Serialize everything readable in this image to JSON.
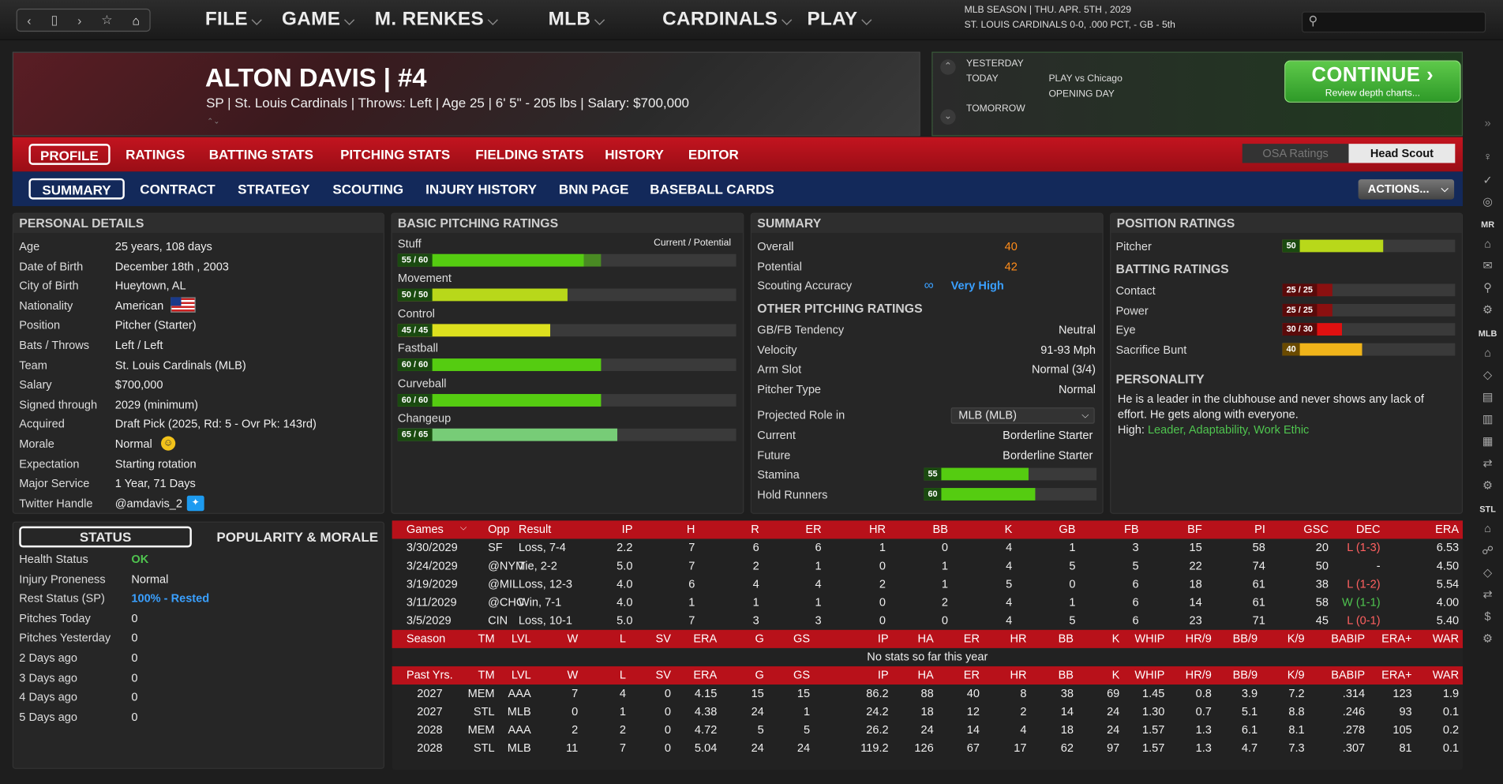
{
  "nav": {
    "back": "‹",
    "tablet": "▯",
    "forward": "›",
    "star": "☆",
    "home": "⌂"
  },
  "menus": [
    "FILE",
    "GAME",
    "M. RENKES",
    "MLB",
    "CARDINALS",
    "PLAY"
  ],
  "season": {
    "line1": "MLB SEASON  |  THU. APR. 5TH , 2029",
    "line2": "ST. LOUIS CARDINALS  0-0, .000 PCT, - GB - 5th"
  },
  "player": {
    "name": "ALTON DAVIS  |  #4",
    "info": "SP | St. Louis Cardinals  |  Throws: Left  |  Age 25  |  6' 5\" - 205 lbs  |  Salary: $700,000"
  },
  "schedule": {
    "yesterday": "YESTERDAY",
    "today": "TODAY",
    "tomorrow": "TOMORROW",
    "game": "PLAY vs Chicago",
    "note": "OPENING DAY"
  },
  "continue": {
    "title": "CONTINUE",
    "sub": "Review depth charts..."
  },
  "tabs1": [
    "PROFILE",
    "RATINGS",
    "BATTING STATS",
    "PITCHING STATS",
    "FIELDING STATS",
    "HISTORY",
    "EDITOR"
  ],
  "tabs2": [
    "SUMMARY",
    "CONTRACT",
    "STRATEGY",
    "SCOUTING",
    "INJURY HISTORY",
    "BNN PAGE",
    "BASEBALL CARDS"
  ],
  "osa": {
    "a": "OSA Ratings",
    "b": "Head Scout"
  },
  "actions": "ACTIONS...",
  "personal": {
    "title": "PERSONAL DETAILS",
    "rows": [
      [
        "Age",
        "25 years, 108 days"
      ],
      [
        "Date of Birth",
        "December 18th , 2003"
      ],
      [
        "City of Birth",
        "Hueytown, AL"
      ],
      [
        "Nationality",
        "American"
      ],
      [
        "Position",
        "Pitcher (Starter)"
      ],
      [
        "Bats / Throws",
        "Left / Left"
      ],
      [
        "Team",
        "St. Louis Cardinals (MLB)"
      ],
      [
        "Salary",
        "$700,000"
      ],
      [
        "Signed through",
        "2029 (minimum)"
      ],
      [
        "Acquired",
        "Draft Pick (2025, Rd: 5 - Ovr Pk: 143rd)"
      ],
      [
        "Morale",
        "Normal"
      ],
      [
        "Expectation",
        "Starting rotation"
      ],
      [
        "Major Service",
        "1 Year, 71 Days"
      ],
      [
        "Twitter Handle",
        "@amdavis_2"
      ]
    ]
  },
  "status": {
    "tab": "STATUS",
    "tab2": "POPULARITY & MORALE",
    "rows": [
      [
        "Health Status",
        "OK"
      ],
      [
        "Injury Proneness",
        "Normal"
      ],
      [
        "Rest Status (SP)",
        "100% - Rested"
      ],
      [
        "Pitches Today",
        "0"
      ],
      [
        "Pitches Yesterday",
        "0"
      ],
      [
        "2 Days ago",
        "0"
      ],
      [
        "3 Days ago",
        "0"
      ],
      [
        "4 Days ago",
        "0"
      ],
      [
        "5 Days ago",
        "0"
      ]
    ]
  },
  "basic": {
    "title": "BASIC PITCHING RATINGS",
    "cp": "Current / Potential",
    "ratings": [
      {
        "name": "Stuff",
        "label": "55 / 60",
        "cur": 55,
        "pot": 60,
        "color": "#55cc11"
      },
      {
        "name": "Movement",
        "label": "50 / 50",
        "cur": 50,
        "pot": 50,
        "color": "#b8d81a"
      },
      {
        "name": "Control",
        "label": "45 / 45",
        "cur": 45,
        "pot": 45,
        "color": "#dde01e"
      },
      {
        "name": "Fastball",
        "label": "60 / 60",
        "cur": 60,
        "pot": 60,
        "color": "#55cc11"
      },
      {
        "name": "Curveball",
        "label": "60 / 60",
        "cur": 60,
        "pot": 60,
        "color": "#55cc11"
      },
      {
        "name": "Changeup",
        "label": "65 / 65",
        "cur": 65,
        "pot": 65,
        "color": "#77cc77"
      }
    ]
  },
  "summary": {
    "title": "SUMMARY",
    "overall_l": "Overall",
    "overall": "40",
    "potential_l": "Potential",
    "potential": "42",
    "acc_l": "Scouting Accuracy",
    "acc": "Very High",
    "other_title": "OTHER PITCHING RATINGS",
    "other": [
      [
        "GB/FB Tendency",
        "Neutral"
      ],
      [
        "Velocity",
        "91-93 Mph"
      ],
      [
        "Arm Slot",
        "Normal (3/4)"
      ],
      [
        "Pitcher Type",
        "Normal"
      ]
    ],
    "role_l": "Projected Role in",
    "role_sel": "MLB (MLB)",
    "current_l": "Current",
    "current": "Borderline Starter",
    "future_l": "Future",
    "future": "Borderline Starter",
    "stamina_l": "Stamina",
    "stamina": "55",
    "stamina_v": 55,
    "hold_l": "Hold Runners",
    "hold": "60",
    "hold_v": 60
  },
  "position": {
    "title": "POSITION RATINGS",
    "pitcher_l": "Pitcher",
    "pitcher": "50",
    "pitcher_v": 50,
    "bat_title": "BATTING RATINGS",
    "bat": [
      {
        "name": "Contact",
        "label": "25 / 25",
        "v": 25
      },
      {
        "name": "Power",
        "label": "25 / 25",
        "v": 25
      },
      {
        "name": "Eye",
        "label": "30 / 30",
        "v": 30
      },
      {
        "name": "Sacrifice Bunt",
        "label": "40",
        "v": 40
      }
    ],
    "pers_title": "PERSONALITY",
    "pers": "He is a leader in the clubhouse and never shows any lack of effort. He gets along with everyone.",
    "high_l": "High:",
    "high": "Leader, Adaptability, Work Ethic"
  },
  "games": {
    "head": [
      "Games",
      "Opp",
      "Result",
      "IP",
      "H",
      "R",
      "ER",
      "HR",
      "BB",
      "K",
      "GB",
      "FB",
      "BF",
      "PI",
      "GSC",
      "DEC",
      "ERA"
    ],
    "rows": [
      [
        "3/30/2029",
        "SF",
        "Loss, 7-4",
        "2.2",
        "7",
        "6",
        "6",
        "1",
        "0",
        "4",
        "1",
        "3",
        "15",
        "58",
        "20",
        "L (1-3)",
        "6.53"
      ],
      [
        "3/24/2029",
        "@NYM",
        "Tie, 2-2",
        "5.0",
        "7",
        "2",
        "1",
        "0",
        "1",
        "4",
        "5",
        "5",
        "22",
        "74",
        "50",
        "-",
        "4.50"
      ],
      [
        "3/19/2029",
        "@MIL",
        "Loss, 12-3",
        "4.0",
        "6",
        "4",
        "4",
        "2",
        "1",
        "5",
        "0",
        "6",
        "18",
        "61",
        "38",
        "L (1-2)",
        "5.54"
      ],
      [
        "3/11/2029",
        "@CHC",
        "Win, 7-1",
        "4.0",
        "1",
        "1",
        "1",
        "0",
        "2",
        "4",
        "1",
        "6",
        "14",
        "61",
        "58",
        "W (1-1)",
        "4.00"
      ],
      [
        "3/5/2029",
        "CIN",
        "Loss, 10-1",
        "5.0",
        "7",
        "3",
        "3",
        "0",
        "0",
        "4",
        "5",
        "6",
        "23",
        "71",
        "45",
        "L (0-1)",
        "5.40"
      ]
    ]
  },
  "season_stats": {
    "head": [
      "Season",
      "TM",
      "LVL",
      "W",
      "L",
      "SV",
      "ERA",
      "G",
      "GS",
      "IP",
      "HA",
      "ER",
      "HR",
      "BB",
      "K",
      "WHIP",
      "HR/9",
      "BB/9",
      "K/9",
      "BABIP",
      "ERA+",
      "WAR"
    ],
    "none": "No stats so far this year"
  },
  "past": {
    "head": [
      "Past Yrs.",
      "TM",
      "LVL",
      "W",
      "L",
      "SV",
      "ERA",
      "G",
      "GS",
      "IP",
      "HA",
      "ER",
      "HR",
      "BB",
      "K",
      "WHIP",
      "HR/9",
      "BB/9",
      "K/9",
      "BABIP",
      "ERA+",
      "WAR"
    ],
    "rows": [
      [
        "2027",
        "MEM",
        "AAA",
        "7",
        "4",
        "0",
        "4.15",
        "15",
        "15",
        "86.2",
        "88",
        "40",
        "8",
        "38",
        "69",
        "1.45",
        "0.8",
        "3.9",
        "7.2",
        ".314",
        "123",
        "1.9"
      ],
      [
        "2027",
        "STL",
        "MLB",
        "0",
        "1",
        "0",
        "4.38",
        "24",
        "1",
        "24.2",
        "18",
        "12",
        "2",
        "14",
        "24",
        "1.30",
        "0.7",
        "5.1",
        "8.8",
        ".246",
        "93",
        "0.1"
      ],
      [
        "2028",
        "MEM",
        "AAA",
        "2",
        "2",
        "0",
        "4.72",
        "5",
        "5",
        "26.2",
        "24",
        "14",
        "4",
        "18",
        "24",
        "1.57",
        "1.3",
        "6.1",
        "8.1",
        ".278",
        "105",
        "0.2"
      ],
      [
        "2028",
        "STL",
        "MLB",
        "11",
        "7",
        "0",
        "5.04",
        "24",
        "24",
        "119.2",
        "126",
        "67",
        "17",
        "62",
        "97",
        "1.57",
        "1.3",
        "4.7",
        "7.3",
        ".307",
        "81",
        "0.1"
      ]
    ]
  },
  "strip": {
    "mr": "MR",
    "mlb": "MLB",
    "stl": "STL"
  }
}
